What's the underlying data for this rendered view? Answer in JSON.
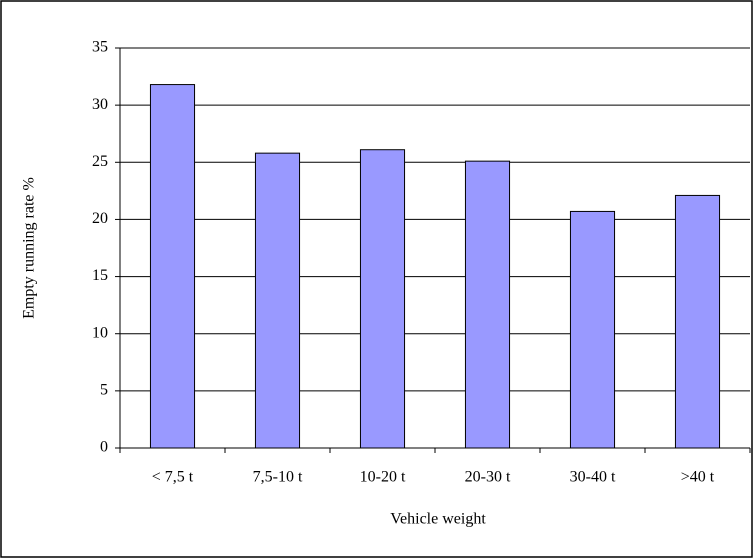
{
  "chart_data": {
    "type": "bar",
    "x_label": "Vehicle weight",
    "y_label": "Empty running rate %",
    "categories": [
      "< 7,5 t",
      "7,5-10 t",
      "10-20 t",
      "20-30 t",
      "30-40 t",
      ">40 t"
    ],
    "values": [
      31.8,
      25.8,
      26.1,
      25.1,
      20.7,
      22.1
    ],
    "color": "#9999ff",
    "ylim": [
      0,
      35
    ],
    "yticks": [
      0,
      5,
      10,
      15,
      20,
      25,
      30,
      35
    ],
    "grid": true
  }
}
